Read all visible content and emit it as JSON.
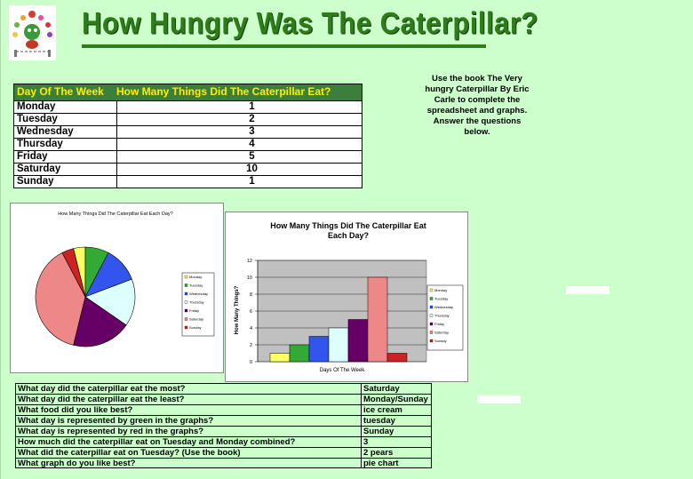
{
  "title": "How Hungry Was The Caterpillar?",
  "instructions": "Use the book The Very hungry Caterpillar By Eric Carle to complete the spreadsheet and graphs. Answer the questions below.",
  "table": {
    "headers": [
      "Day Of The Week",
      "How Many Things Did The Caterpillar Eat?"
    ],
    "rows": [
      {
        "day": "Monday",
        "count": "1"
      },
      {
        "day": "Tuesday",
        "count": "2"
      },
      {
        "day": "Wednesday",
        "count": "3"
      },
      {
        "day": "Thursday",
        "count": "4"
      },
      {
        "day": "Friday",
        "count": "5"
      },
      {
        "day": "Saturday",
        "count": "10"
      },
      {
        "day": "Sunday",
        "count": "1"
      }
    ]
  },
  "colors": {
    "monday": "#ffff66",
    "tuesday": "#33aa33",
    "wednesday": "#3355ee",
    "thursday": "#ddffff",
    "friday": "#660066",
    "saturday": "#ee8888",
    "sunday": "#cc2222",
    "title": "#2e7d1a",
    "header_bg": "#3c7e3c",
    "header_text": "#ffee00",
    "sheet_bg": "#ccffcc"
  },
  "chart_data": [
    {
      "type": "pie",
      "title": "How Many Things Did The Caterpillar Eat Each Day?",
      "categories": [
        "Monday",
        "Tuesday",
        "Wednesday",
        "Thursday",
        "Friday",
        "Saturday",
        "Sunday"
      ],
      "values": [
        1,
        2,
        3,
        4,
        5,
        10,
        1
      ],
      "legend": "right"
    },
    {
      "type": "bar",
      "title": "How Many Things Did The Caterpillar Eat Each Day?",
      "xlabel": "Days Of The Week",
      "ylabel": "How Many Things?",
      "categories": [
        "Monday",
        "Tuesday",
        "Wednesday",
        "Thursday",
        "Friday",
        "Saturday",
        "Sunday"
      ],
      "values": [
        1,
        2,
        3,
        4,
        5,
        10,
        1
      ],
      "ylim": [
        0,
        12
      ],
      "yticks": [
        "0",
        "2",
        "4",
        "6",
        "8",
        "10",
        "12"
      ],
      "grid": true,
      "legend": "right"
    }
  ],
  "questions": [
    {
      "q": "What day did the caterpillar eat the most?",
      "a": "Saturday"
    },
    {
      "q": "What day did the caterpillar eat the least?",
      "a": "Monday/Sunday"
    },
    {
      "q": "What food did you like best?",
      "a": "ice cream"
    },
    {
      "q": "What day is represented by green in the graphs?",
      "a": "tuesday"
    },
    {
      "q": "What day is represented by red in the graphs?",
      "a": "Sunday"
    },
    {
      "q": "How much did the caterpillar eat on Tuesday and Monday combined?",
      "a": "3"
    },
    {
      "q": "What did the caterpillar eat on Tuesday? (Use the book)",
      "a": "2 pears"
    },
    {
      "q": "What graph do you like best?",
      "a": "pie chart"
    }
  ]
}
